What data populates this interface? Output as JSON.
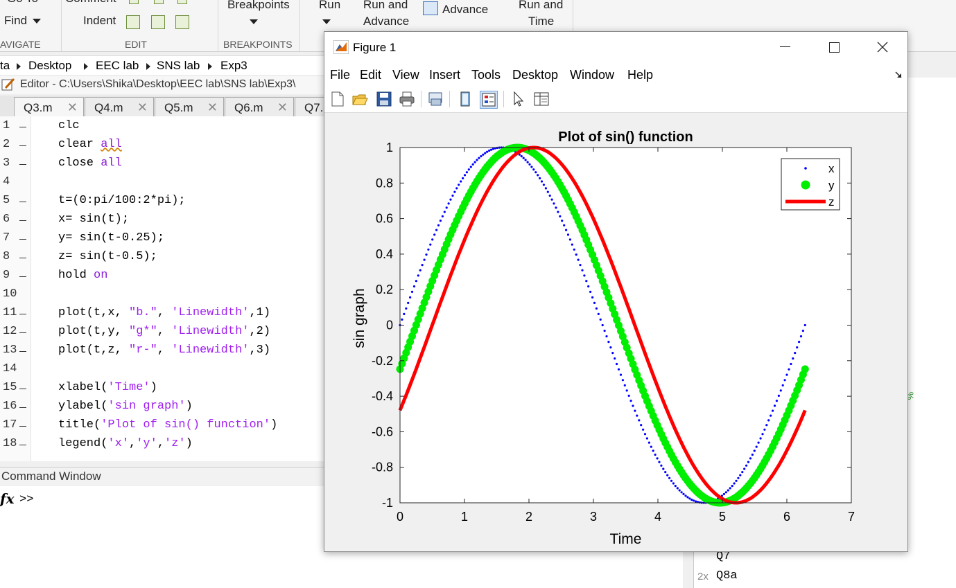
{
  "toolstrip": {
    "goto_label": "Go To",
    "comment_label": "Comment",
    "find_label": "Find",
    "indent_label": "Indent",
    "breakpoints_label": "Breakpoints",
    "run_label": "Run",
    "run_advance_line1": "Run and",
    "run_advance_line2": "Advance",
    "advance_label": "Advance",
    "run_time_line1": "Run and",
    "run_time_line2": "Time",
    "sections": {
      "navigate": "AVIGATE",
      "edit": "EDIT",
      "breakpoints": "BREAKPOINTS"
    }
  },
  "address_bar": {
    "crumbs": [
      "ta",
      "Desktop",
      "EEC lab",
      "SNS lab",
      "Exp3"
    ]
  },
  "editor": {
    "title": "Editor - C:\\Users\\Shika\\Desktop\\EEC lab\\SNS lab\\Exp3\\",
    "tabs": [
      {
        "label": "Q3.m"
      },
      {
        "label": "Q4.m"
      },
      {
        "label": "Q5.m"
      },
      {
        "label": "Q6.m"
      },
      {
        "label": "Q7."
      }
    ],
    "lines": [
      {
        "n": "1",
        "code": "clc",
        "dash": true
      },
      {
        "n": "2",
        "code": "clear all",
        "dash": true
      },
      {
        "n": "3",
        "code": "close all",
        "dash": true
      },
      {
        "n": "4",
        "code": "",
        "dash": false
      },
      {
        "n": "5",
        "code": "t=(0:pi/100:2*pi);",
        "dash": true
      },
      {
        "n": "6",
        "code": "x= sin(t);",
        "dash": true
      },
      {
        "n": "7",
        "code": "y= sin(t-0.25);",
        "dash": true
      },
      {
        "n": "8",
        "code": "z= sin(t-0.5);",
        "dash": true
      },
      {
        "n": "9",
        "code": "hold on",
        "dash": true
      },
      {
        "n": "10",
        "code": "",
        "dash": false
      },
      {
        "n": "11",
        "code": "plot(t,x, \"b.\", 'Linewidth',1)",
        "dash": true
      },
      {
        "n": "12",
        "code": "plot(t,y, \"g*\", 'Linewidth',2)",
        "dash": true
      },
      {
        "n": "13",
        "code": "plot(t,z, \"r-\", 'Linewidth',3)",
        "dash": true
      },
      {
        "n": "14",
        "code": "",
        "dash": false
      },
      {
        "n": "15",
        "code": "xlabel('Time')",
        "dash": true
      },
      {
        "n": "16",
        "code": "ylabel('sin graph')",
        "dash": true
      },
      {
        "n": "17",
        "code": "title('Plot of sin() function')",
        "dash": true
      },
      {
        "n": "18",
        "code": "legend('x','y','z')",
        "dash": true
      }
    ]
  },
  "command_window": {
    "title": "Command Window",
    "fx": "fx",
    "prompt": ">>"
  },
  "history": {
    "items": [
      {
        "prefix": "",
        "label": "Q7"
      },
      {
        "prefix": "2x",
        "label": "Q8a"
      }
    ],
    "percent": "%"
  },
  "figure": {
    "title": "Figure 1",
    "menus": [
      "File",
      "Edit",
      "View",
      "Insert",
      "Tools",
      "Desktop",
      "Window",
      "Help"
    ],
    "toolbar_icons": [
      "new-figure-icon",
      "open-file-icon",
      "save-icon",
      "print-icon",
      "link-plot-icon",
      "colorbar-icon",
      "legend-icon",
      "pointer-icon",
      "property-editor-icon"
    ]
  },
  "colors": {
    "x_series": "#0000ff",
    "y_series": "#00ee00",
    "z_series": "#ff0000",
    "keyword": "#8b1fd6",
    "string": "#a020f0"
  },
  "chart_data": {
    "type": "line",
    "title": "Plot of sin() function",
    "xlabel": "Time",
    "ylabel": "sin graph",
    "xlim": [
      0,
      7
    ],
    "ylim": [
      -1,
      1
    ],
    "xticks": [
      "0",
      "1",
      "2",
      "3",
      "4",
      "5",
      "6",
      "7"
    ],
    "yticks": [
      "-1",
      "-0.8",
      "-0.6",
      "-0.4",
      "-0.2",
      "0",
      "0.2",
      "0.4",
      "0.6",
      "0.8",
      "1"
    ],
    "legend_position": "top-right",
    "grid": false,
    "series": [
      {
        "name": "x",
        "marker": "point",
        "t_range": [
          0,
          6.2832
        ],
        "phase": 0
      },
      {
        "name": "y",
        "marker": "star",
        "t_range": [
          0,
          6.2832
        ],
        "phase": 0.25
      },
      {
        "name": "z",
        "marker": "line",
        "t_range": [
          0,
          6.2832
        ],
        "phase": 0.5
      }
    ]
  }
}
